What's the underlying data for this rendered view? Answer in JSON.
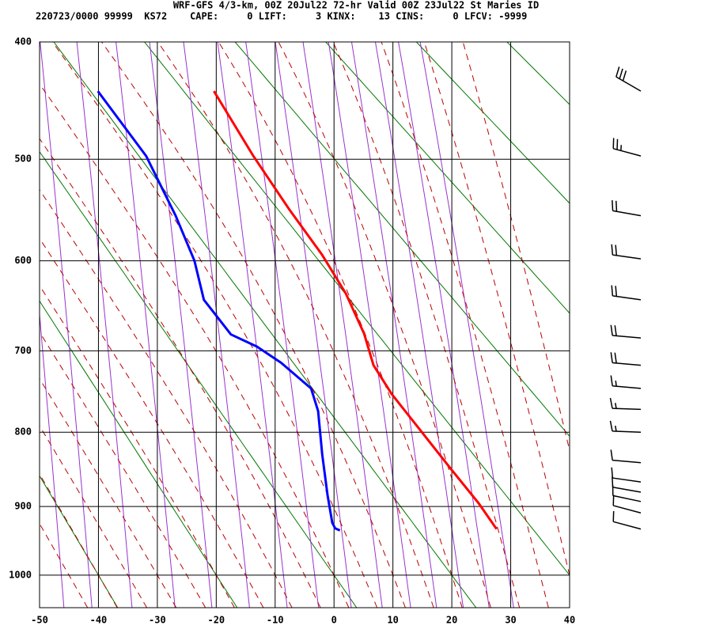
{
  "header": {
    "title": "WRF-GFS 4/3-km, 00Z 20Jul22 72-hr Valid 00Z 23Jul22 St Maries ID",
    "info": "220723/0000 99999  KS72    CAPE:     0 LIFT:     3 KINX:    13 CINS:     0 LFCV: -9999"
  },
  "chart_data": {
    "type": "skewt",
    "xlim": [
      -50,
      40
    ],
    "xticks": [
      -50,
      -40,
      -30,
      -20,
      -10,
      0,
      10,
      20,
      30,
      40
    ],
    "ylim": [
      400,
      1050
    ],
    "yticks": [
      400,
      500,
      600,
      700,
      800,
      900,
      1000
    ],
    "grid": true,
    "series": [
      {
        "color": "#ff0000",
        "pressure": [
          440,
          497,
          547,
          594,
          635,
          680,
          717,
          752,
          796,
          849,
          896,
          932
        ],
        "values": [
          -20.4,
          -13.7,
          -7.7,
          -2.0,
          2.0,
          5.1,
          6.7,
          9.8,
          14.5,
          19.9,
          24.6,
          27.6
        ]
      },
      {
        "color": "#0000ff",
        "pressure": [
          440,
          497,
          554,
          600,
          642,
          681,
          695,
          714,
          745,
          773,
          829,
          884,
          923,
          931,
          934
        ],
        "values": [
          -40.1,
          -31.9,
          -26.9,
          -23.7,
          -22.1,
          -17.5,
          -13.1,
          -9.0,
          -3.9,
          -2.7,
          -2.0,
          -1.1,
          -0.3,
          0.2,
          1.0
        ]
      }
    ],
    "winds": {
      "pressure": [
        440,
        497,
        554,
        598,
        642,
        685,
        717,
        745,
        771,
        800,
        840,
        866,
        880,
        893,
        909,
        932
      ],
      "direction": [
        300,
        285,
        280,
        278,
        278,
        275,
        275,
        275,
        272,
        272,
        275,
        278,
        280,
        282,
        285,
        285
      ],
      "speed": [
        30,
        25,
        20,
        20,
        20,
        20,
        20,
        15,
        15,
        15,
        10,
        10,
        10,
        10,
        10,
        10
      ]
    }
  }
}
